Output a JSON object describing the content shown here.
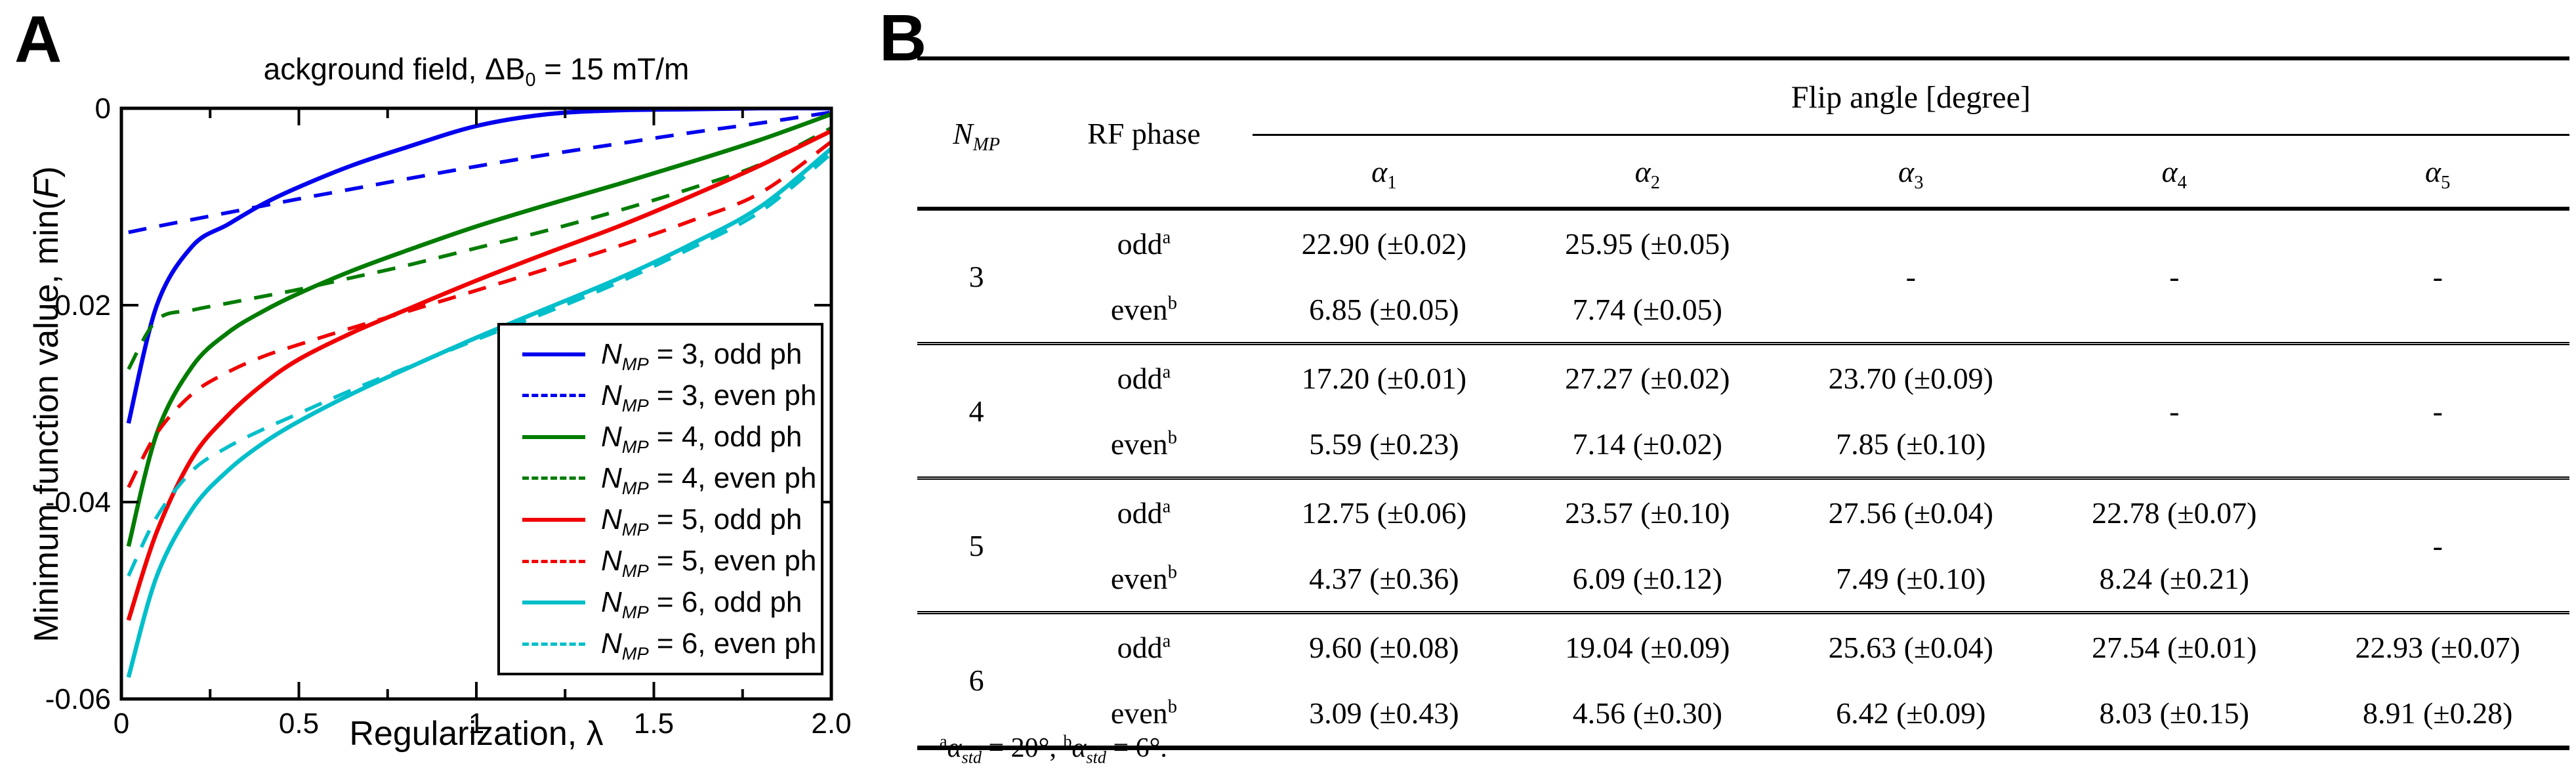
{
  "panelA": {
    "label": "A"
  },
  "panelB": {
    "label": "B"
  },
  "chart_data": [
    {
      "type": "line",
      "title": "ackground field, ΔB_{0} = 15 mT/m",
      "xlabel": "Regularization, λ",
      "ylabel": "Minimum function value, min(*F*)",
      "xlim": [
        0,
        2
      ],
      "ylim": [
        -0.06,
        0
      ],
      "grid": false,
      "legend_position": "lower right",
      "x_tick_labels": [
        {
          "v": 0,
          "s": "0"
        },
        {
          "v": 0.5,
          "s": "0.5"
        },
        {
          "v": 1,
          "s": "1"
        },
        {
          "v": 1.5,
          "s": "1.5"
        },
        {
          "v": 2,
          "s": "2.0"
        }
      ],
      "x_ticks_major": [
        0.5,
        1,
        1.5
      ],
      "x_ticks_minor": [
        0.25,
        0.75,
        1.25,
        1.75
      ],
      "y_tick_labels": [
        {
          "v": 0,
          "s": "0"
        },
        {
          "v": -0.02,
          "s": "-0.02"
        },
        {
          "v": -0.04,
          "s": "-0.04"
        },
        {
          "v": -0.06,
          "s": "-0.06"
        }
      ],
      "y_ticks_major": [
        -0.02,
        -0.04
      ],
      "x": [
        0.02,
        0.1,
        0.2,
        0.3,
        0.4,
        0.5,
        0.65,
        0.8,
        1.0,
        1.2,
        1.4,
        1.6,
        1.8,
        2.0
      ],
      "series": [
        {
          "name": "*N*_{*MP*} = 3, odd ph",
          "color": "#0000ee",
          "style": "solid",
          "values": [
            -0.032,
            -0.02,
            -0.014,
            -0.0118,
            -0.0097,
            -0.008,
            -0.0058,
            -0.004,
            -0.0018,
            -0.0006,
            -0.0002,
            -0.0001,
            0.0,
            0.0
          ]
        },
        {
          "name": "*N*_{*MP*} = 3, even ph",
          "color": "#0000ee",
          "style": "dashed",
          "values": [
            -0.0126,
            -0.012,
            -0.0113,
            -0.0106,
            -0.0099,
            -0.0092,
            -0.0082,
            -0.0072,
            -0.0059,
            -0.0047,
            -0.0036,
            -0.0025,
            -0.0015,
            -0.0004
          ]
        },
        {
          "name": "*N*_{*MP*} = 4, odd ph",
          "color": "#007c00",
          "style": "solid",
          "values": [
            -0.0445,
            -0.033,
            -0.0262,
            -0.0228,
            -0.0206,
            -0.0188,
            -0.0165,
            -0.0145,
            -0.012,
            -0.0098,
            -0.0077,
            -0.0055,
            -0.0032,
            -0.0006
          ]
        },
        {
          "name": "*N*_{*MP*} = 4, even ph",
          "color": "#007c00",
          "style": "dashed",
          "values": [
            -0.0265,
            -0.0215,
            -0.0205,
            -0.0198,
            -0.0191,
            -0.0184,
            -0.0172,
            -0.016,
            -0.0142,
            -0.0124,
            -0.0104,
            -0.0082,
            -0.0057,
            -0.002
          ]
        },
        {
          "name": "*N*_{*MP*} = 5, odd ph",
          "color": "#f00000",
          "style": "solid",
          "values": [
            -0.052,
            -0.043,
            -0.0355,
            -0.0312,
            -0.028,
            -0.0255,
            -0.0228,
            -0.0205,
            -0.0175,
            -0.0147,
            -0.012,
            -0.009,
            -0.0058,
            -0.0023
          ]
        },
        {
          "name": "*N*_{*MP*} = 5, even ph",
          "color": "#f00000",
          "style": "dashed",
          "values": [
            -0.0385,
            -0.033,
            -0.029,
            -0.0268,
            -0.0252,
            -0.024,
            -0.0223,
            -0.0207,
            -0.0185,
            -0.0163,
            -0.014,
            -0.0115,
            -0.0086,
            -0.0034
          ]
        },
        {
          "name": "*N*_{*MP*} = 6, odd ph",
          "color": "#00bfca",
          "style": "solid",
          "values": [
            -0.0578,
            -0.0475,
            -0.0407,
            -0.0368,
            -0.034,
            -0.0318,
            -0.029,
            -0.0265,
            -0.0233,
            -0.0203,
            -0.0173,
            -0.0139,
            -0.01,
            -0.0041
          ]
        },
        {
          "name": "*N*_{*MP*} = 6, even ph",
          "color": "#00bfca",
          "style": "dashed",
          "values": [
            -0.0475,
            -0.0415,
            -0.0368,
            -0.0344,
            -0.0326,
            -0.031,
            -0.0286,
            -0.0264,
            -0.0235,
            -0.0207,
            -0.0177,
            -0.0143,
            -0.0105,
            -0.0046
          ]
        }
      ]
    },
    {
      "type": "table",
      "columns": [
        "*N*_{*MP*}",
        "RF phase",
        "*α*_{1}",
        "*α*_{2}",
        "*α*_{3}",
        "*α*_{4}",
        "*α*_{5}"
      ],
      "flip_angle_header": "Flip angle [degree]",
      "missing_marker": "-",
      "groups": [
        {
          "nmp": "3",
          "rows": [
            {
              "phase": "odd^{a}",
              "values": [
                "22.90 (±0.02)",
                "25.95 (±0.05)",
                null,
                null,
                null
              ]
            },
            {
              "phase": "even^{b}",
              "values": [
                "6.85 (±0.05)",
                "7.74 (±0.05)",
                null,
                null,
                null
              ]
            }
          ]
        },
        {
          "nmp": "4",
          "rows": [
            {
              "phase": "odd^{a}",
              "values": [
                "17.20 (±0.01)",
                "27.27 (±0.02)",
                "23.70 (±0.09)",
                null,
                null
              ]
            },
            {
              "phase": "even^{b}",
              "values": [
                "5.59 (±0.23)",
                "7.14 (±0.02)",
                "7.85 (±0.10)",
                null,
                null
              ]
            }
          ]
        },
        {
          "nmp": "5",
          "rows": [
            {
              "phase": "odd^{a}",
              "values": [
                "12.75 (±0.06)",
                "23.57 (±0.10)",
                "27.56 (±0.04)",
                "22.78 (±0.07)",
                null
              ]
            },
            {
              "phase": "even^{b}",
              "values": [
                "4.37 (±0.36)",
                "6.09 (±0.12)",
                "7.49 (±0.10)",
                "8.24 (±0.21)",
                null
              ]
            }
          ]
        },
        {
          "nmp": "6",
          "rows": [
            {
              "phase": "odd^{a}",
              "values": [
                "9.60 (±0.08)",
                "19.04 (±0.09)",
                "25.63 (±0.04)",
                "27.54 (±0.01)",
                "22.93 (±0.07)"
              ]
            },
            {
              "phase": "even^{b}",
              "values": [
                "3.09 (±0.43)",
                "4.56 (±0.30)",
                "6.42 (±0.09)",
                "8.03 (±0.15)",
                "8.91 (±0.28)"
              ]
            }
          ]
        }
      ],
      "footnote": "^{a}*α*_{*std*} = 20°,  ^{b}*α*_{*std*} = 6°."
    }
  ]
}
